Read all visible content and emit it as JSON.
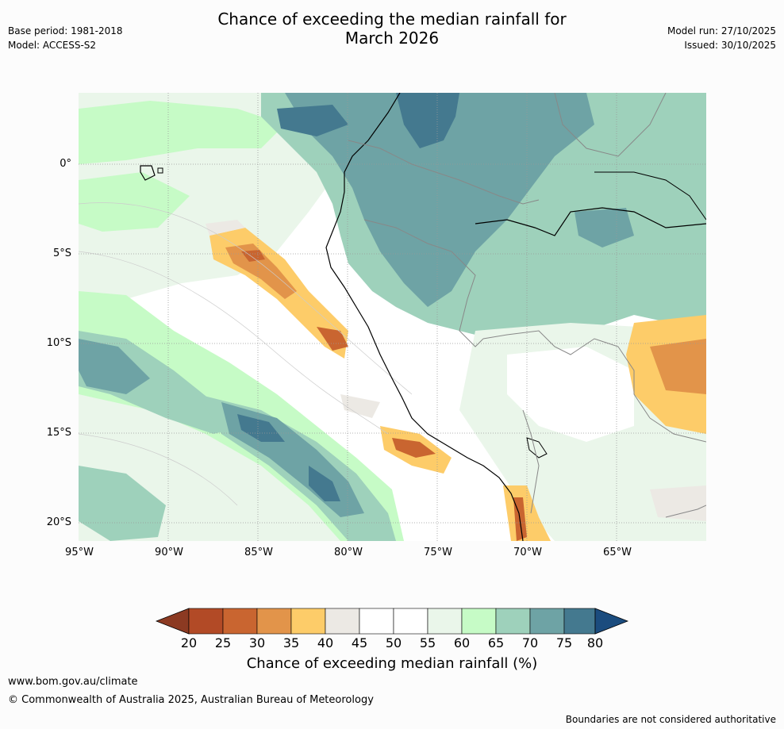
{
  "header": {
    "title_line1": "Chance of exceeding the median rainfall for",
    "title_line2": "March 2026",
    "base_period": "Base period: 1981-2018",
    "model": "Model: ACCESS-S2",
    "model_run": "Model run: 27/10/2025",
    "issued": "Issued: 30/10/2025"
  },
  "map": {
    "lat_labels": [
      "0°",
      "5°S",
      "10°S",
      "15°S",
      "20°S"
    ],
    "lon_labels": [
      "95°W",
      "90°W",
      "85°W",
      "80°W",
      "75°W",
      "70°W",
      "65°W"
    ]
  },
  "colorbar": {
    "title": "Chance of exceeding median rainfall (%)",
    "ticks": [
      "20",
      "25",
      "30",
      "35",
      "40",
      "45",
      "50",
      "55",
      "60",
      "65",
      "70",
      "75",
      "80"
    ],
    "colors": [
      "#8c3a22",
      "#b24a26",
      "#c96530",
      "#e2944a",
      "#fdcc69",
      "#ece9e4",
      "#ffffff",
      "#ffffff",
      "#eaf6ea",
      "#c6fbc6",
      "#9ed1bb",
      "#6ea3a5",
      "#44798f",
      "#1b4c7e"
    ]
  },
  "footer": {
    "website": "www.bom.gov.au/climate",
    "copyright": "© Commonwealth of Australia 2025, Australian Bureau of Meteorology",
    "disclaimer": "Boundaries are not considered authoritative"
  },
  "colors": {
    "land_outline": "#000000",
    "border": "#888888",
    "grid": "#999999"
  }
}
